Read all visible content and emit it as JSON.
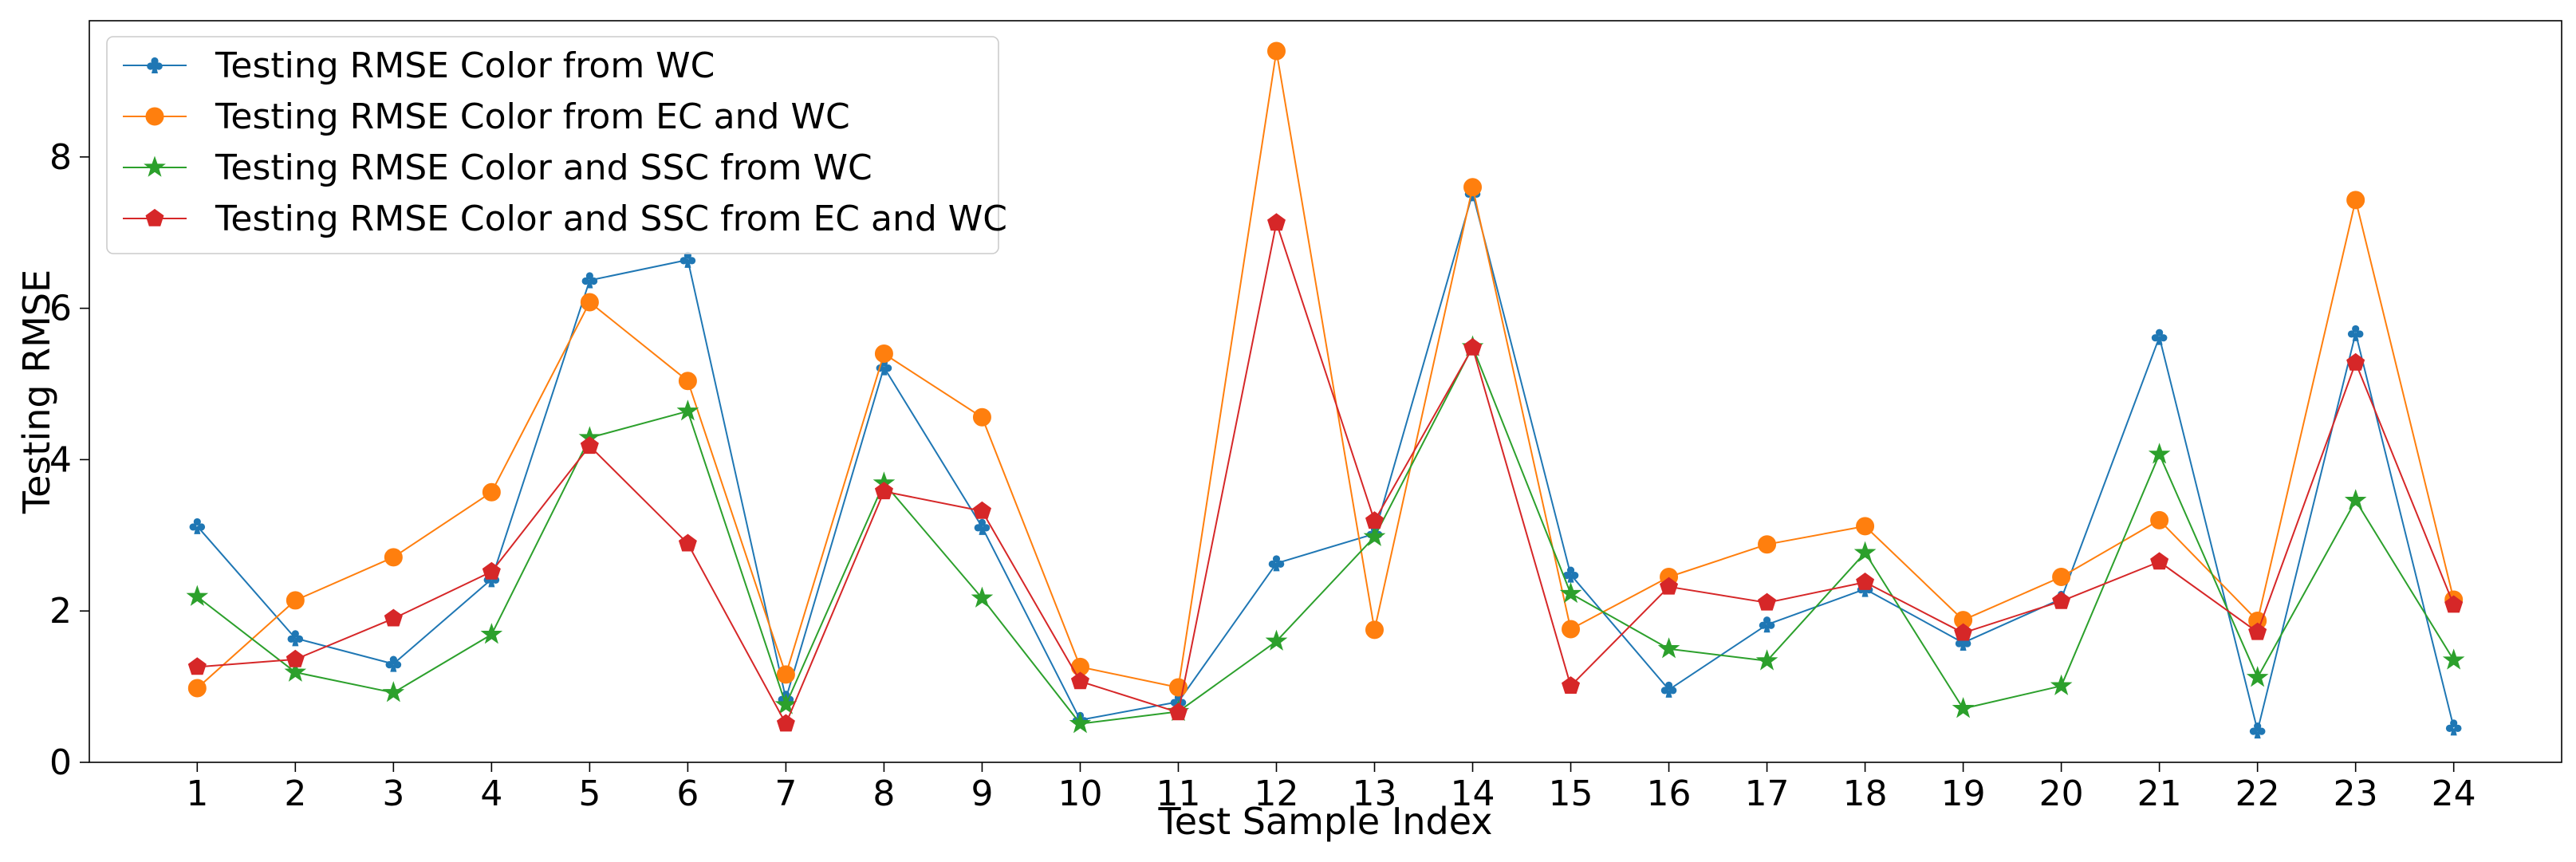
{
  "chart_data": {
    "type": "line",
    "xlabel": "Test Sample Index",
    "ylabel": "Testing RMSE",
    "x": [
      1,
      2,
      3,
      4,
      5,
      6,
      7,
      8,
      9,
      10,
      11,
      12,
      13,
      14,
      15,
      16,
      17,
      18,
      19,
      20,
      21,
      22,
      23,
      24
    ],
    "xlim": [
      -0.1,
      25.1
    ],
    "ylim": [
      0,
      9.8
    ],
    "yticks": [
      0,
      2,
      4,
      6,
      8
    ],
    "legend_position": "top-left",
    "series": [
      {
        "name": "Testing RMSE Color from WC",
        "color": "#1f77b4",
        "marker": "club",
        "values": [
          3.12,
          1.64,
          1.3,
          2.42,
          6.37,
          6.64,
          0.84,
          5.22,
          3.11,
          0.56,
          0.8,
          2.63,
          3.02,
          7.52,
          2.48,
          0.96,
          1.82,
          2.29,
          1.58,
          2.16,
          5.62,
          0.42,
          5.67,
          0.46
        ]
      },
      {
        "name": "Testing RMSE Color from EC and WC",
        "color": "#ff7f0e",
        "marker": "circle",
        "values": [
          0.98,
          2.14,
          2.71,
          3.57,
          6.08,
          5.04,
          1.16,
          5.4,
          4.56,
          1.26,
          0.99,
          9.4,
          1.75,
          7.6,
          1.76,
          2.45,
          2.88,
          3.12,
          1.88,
          2.45,
          3.2,
          1.87,
          7.43,
          2.15
        ]
      },
      {
        "name": "Testing RMSE Color and SSC from WC",
        "color": "#2ca02c",
        "marker": "star",
        "values": [
          2.19,
          1.19,
          0.92,
          1.69,
          4.29,
          4.64,
          0.76,
          3.69,
          2.17,
          0.51,
          0.67,
          1.6,
          2.98,
          5.49,
          2.23,
          1.5,
          1.34,
          2.77,
          0.71,
          1.01,
          4.07,
          1.12,
          3.46,
          1.35
        ]
      },
      {
        "name": "Testing RMSE Color and SSC from EC and WC",
        "color": "#d62728",
        "marker": "pentagon",
        "values": [
          1.26,
          1.36,
          1.9,
          2.52,
          4.18,
          2.89,
          0.51,
          3.58,
          3.32,
          1.07,
          0.66,
          7.13,
          3.19,
          5.48,
          1.01,
          2.32,
          2.11,
          2.38,
          1.71,
          2.13,
          2.65,
          1.72,
          5.28,
          2.08
        ]
      }
    ]
  }
}
